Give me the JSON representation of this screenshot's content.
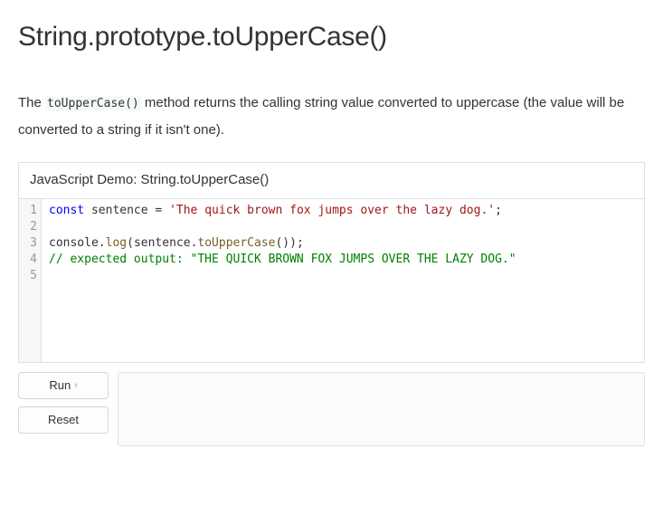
{
  "page": {
    "title": "String.prototype.toUpperCase()",
    "description_pre": "The ",
    "description_code": "toUpperCase()",
    "description_post": " method returns the calling string value converted to uppercase (the value will be converted to a string if it isn't one)."
  },
  "demo": {
    "header": "JavaScript Demo: String.toUpperCase()",
    "line_count": 5,
    "code_tokens": [
      [
        {
          "t": "const",
          "c": "tok-kw"
        },
        {
          "t": " ",
          "c": "tok-pun"
        },
        {
          "t": "sentence",
          "c": "tok-id"
        },
        {
          "t": " = ",
          "c": "tok-pun"
        },
        {
          "t": "'The quick brown fox jumps over the lazy dog.'",
          "c": "tok-str"
        },
        {
          "t": ";",
          "c": "tok-pun"
        }
      ],
      [],
      [
        {
          "t": "console",
          "c": "tok-id"
        },
        {
          "t": ".",
          "c": "tok-pun"
        },
        {
          "t": "log",
          "c": "tok-fn"
        },
        {
          "t": "(",
          "c": "tok-pun"
        },
        {
          "t": "sentence",
          "c": "tok-id"
        },
        {
          "t": ".",
          "c": "tok-pun"
        },
        {
          "t": "toUpperCase",
          "c": "tok-fn"
        },
        {
          "t": "());",
          "c": "tok-pun"
        }
      ],
      [
        {
          "t": "// expected output: \"THE QUICK BROWN FOX JUMPS OVER THE LAZY DOG.\"",
          "c": "tok-cm"
        }
      ],
      []
    ]
  },
  "controls": {
    "run_label": "Run",
    "run_chevron": "›",
    "reset_label": "Reset"
  },
  "colors": {
    "border": "#e0e0e0",
    "gutter_bg": "#f7f7f7",
    "gutter_fg": "#999999",
    "keyword": "#0000ff",
    "string": "#a31515",
    "comment": "#008000",
    "func": "#795e26",
    "text": "#333333",
    "output_bg": "#fbfbfb",
    "btn_border": "#d6d6d6"
  }
}
